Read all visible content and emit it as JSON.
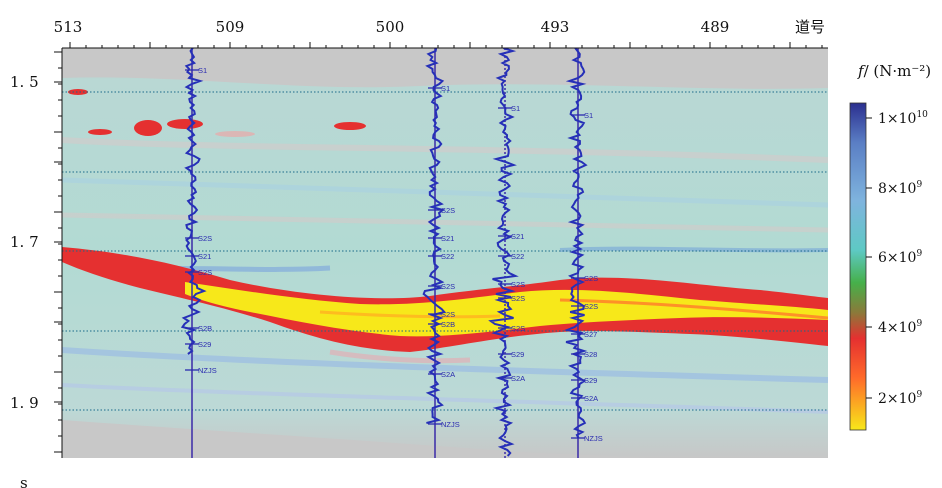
{
  "figure": {
    "top_axis": {
      "ticks": [
        "513",
        "509",
        "500",
        "493",
        "489"
      ],
      "label": "道号"
    },
    "left_axis": {
      "ticks": [
        "1. 5",
        "1. 7",
        "1. 9"
      ],
      "unit": "s"
    },
    "legend": {
      "title_symbol": "f",
      "title_unit": "/ (N·m⁻²)",
      "entries": [
        {
          "mantissa": "1×10",
          "exp": "10"
        },
        {
          "mantissa": "8×10",
          "exp": "9"
        },
        {
          "mantissa": "6×10",
          "exp": "9"
        },
        {
          "mantissa": "4×10",
          "exp": "9"
        },
        {
          "mantissa": "2×10",
          "exp": "9"
        }
      ],
      "colors": [
        "#2b2f8f",
        "#6fa3d8",
        "#5cc8c0",
        "#3fae4a",
        "#7a6a3a",
        "#e53030",
        "#ff5a2a",
        "#f7e81a"
      ]
    },
    "wells": [
      {
        "labels": [
          "S1",
          "S2S",
          "S21",
          "S2S",
          "S2B",
          "S29",
          "NZJS"
        ]
      },
      {
        "labels": [
          "S1",
          "S2S",
          "S21",
          "S22",
          "S2S",
          "S2S",
          "S2B",
          "S2A",
          "NZJS"
        ]
      },
      {
        "labels": [
          "S1",
          "S21",
          "S22",
          "S2S",
          "S2S",
          "S2S",
          "S29",
          "S2A"
        ]
      },
      {
        "labels": [
          "S1",
          "S2S",
          "S2S",
          "S27",
          "S28",
          "S29",
          "S2A",
          "NZJS"
        ]
      }
    ]
  }
}
